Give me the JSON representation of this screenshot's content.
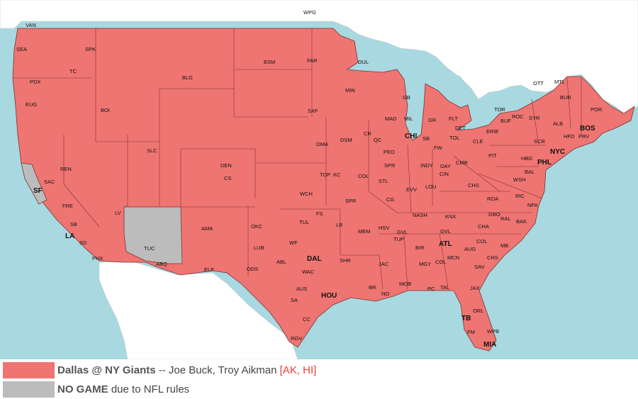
{
  "colors": {
    "water": "#a8d8e0",
    "land": "#ffffff",
    "game": "#ef7572",
    "no_game": "#bcbcbc",
    "border": "#6e2c2c"
  },
  "legend": [
    {
      "title": "Dallas @ NY Giants",
      "sep": " -- ",
      "detail": "Joe Buck, Troy Aikman ",
      "tag": "[AK, HI]",
      "color": "#ef7572"
    },
    {
      "title": "NO GAME",
      "sep": " ",
      "detail": "due to NFL rules",
      "tag": "",
      "color": "#bcbcbc"
    }
  ],
  "cities": [
    {
      "name": "WPG"
    },
    {
      "name": "VAN"
    },
    {
      "name": "SEA"
    },
    {
      "name": "SPK"
    },
    {
      "name": "PDX"
    },
    {
      "name": "TC"
    },
    {
      "name": "EUG"
    },
    {
      "name": "BOI"
    },
    {
      "name": "BLG"
    },
    {
      "name": "BSM"
    },
    {
      "name": "FAR"
    },
    {
      "name": "DUL"
    },
    {
      "name": "MIN"
    },
    {
      "name": "GB"
    },
    {
      "name": "OTT"
    },
    {
      "name": "MTL"
    },
    {
      "name": "BUR"
    },
    {
      "name": "POR"
    },
    {
      "name": "TOR"
    },
    {
      "name": "ROC"
    },
    {
      "name": "SYR"
    },
    {
      "name": "BUF"
    },
    {
      "name": "ALB"
    },
    {
      "name": "BOS"
    },
    {
      "name": "HFD"
    },
    {
      "name": "PRV"
    },
    {
      "name": "NYC"
    },
    {
      "name": "PHL"
    },
    {
      "name": "SCR"
    },
    {
      "name": "HBG"
    },
    {
      "name": "BAL"
    },
    {
      "name": "WSH"
    },
    {
      "name": "RIC"
    },
    {
      "name": "NFK"
    },
    {
      "name": "SXF"
    },
    {
      "name": "MAD"
    },
    {
      "name": "MIL"
    },
    {
      "name": "GR"
    },
    {
      "name": "FLT"
    },
    {
      "name": "DET"
    },
    {
      "name": "ERIE"
    },
    {
      "name": "CHI"
    },
    {
      "name": "SB"
    },
    {
      "name": "TOL"
    },
    {
      "name": "CLE"
    },
    {
      "name": "PIT"
    },
    {
      "name": "FW"
    },
    {
      "name": "DSM"
    },
    {
      "name": "CR"
    },
    {
      "name": "QC"
    },
    {
      "name": "PEO"
    },
    {
      "name": "SPR"
    },
    {
      "name": "INDY"
    },
    {
      "name": "DAY"
    },
    {
      "name": "CMB"
    },
    {
      "name": "CIN"
    },
    {
      "name": "OMA"
    },
    {
      "name": "SLC"
    },
    {
      "name": "REN"
    },
    {
      "name": "SAC"
    },
    {
      "name": "SF"
    },
    {
      "name": "DEN"
    },
    {
      "name": "CS"
    },
    {
      "name": "TOP"
    },
    {
      "name": "KC"
    },
    {
      "name": "COL"
    },
    {
      "name": "STL"
    },
    {
      "name": "EVV"
    },
    {
      "name": "LOU"
    },
    {
      "name": "CHS"
    },
    {
      "name": "ROA"
    },
    {
      "name": "FRE"
    },
    {
      "name": "LV"
    },
    {
      "name": "WCH"
    },
    {
      "name": "SPR"
    },
    {
      "name": "CG"
    },
    {
      "name": "NASH"
    },
    {
      "name": "KNX"
    },
    {
      "name": "GBO"
    },
    {
      "name": "RAL"
    },
    {
      "name": "GVL"
    },
    {
      "name": "CHA"
    },
    {
      "name": "BAK"
    },
    {
      "name": "SB"
    },
    {
      "name": "LA"
    },
    {
      "name": "SD"
    },
    {
      "name": "PHX"
    },
    {
      "name": "TUC"
    },
    {
      "name": "ABQ"
    },
    {
      "name": "AMA"
    },
    {
      "name": "OKC"
    },
    {
      "name": "TUL"
    },
    {
      "name": "FS"
    },
    {
      "name": "LR"
    },
    {
      "name": "MEM"
    },
    {
      "name": "HSV"
    },
    {
      "name": "GVL"
    },
    {
      "name": "COL"
    },
    {
      "name": "TUP"
    },
    {
      "name": "BIR"
    },
    {
      "name": "ATL"
    },
    {
      "name": "AUG"
    },
    {
      "name": "MB"
    },
    {
      "name": "CHS"
    },
    {
      "name": "LUB"
    },
    {
      "name": "WF"
    },
    {
      "name": "DAL"
    },
    {
      "name": "ABL"
    },
    {
      "name": "SHR"
    },
    {
      "name": "ODS"
    },
    {
      "name": "WAC"
    },
    {
      "name": "JAC"
    },
    {
      "name": "MGY"
    },
    {
      "name": "COL"
    },
    {
      "name": "MCN"
    },
    {
      "name": "SAV"
    },
    {
      "name": "ELP"
    },
    {
      "name": "AUS"
    },
    {
      "name": "HOU"
    },
    {
      "name": "SA"
    },
    {
      "name": "BR"
    },
    {
      "name": "NO"
    },
    {
      "name": "MOB"
    },
    {
      "name": "PC"
    },
    {
      "name": "TAL"
    },
    {
      "name": "JAX"
    },
    {
      "name": "CC"
    },
    {
      "name": "ORL"
    },
    {
      "name": "TB"
    },
    {
      "name": "FM"
    },
    {
      "name": "WPB"
    },
    {
      "name": "MIA"
    },
    {
      "name": "RGV"
    }
  ]
}
